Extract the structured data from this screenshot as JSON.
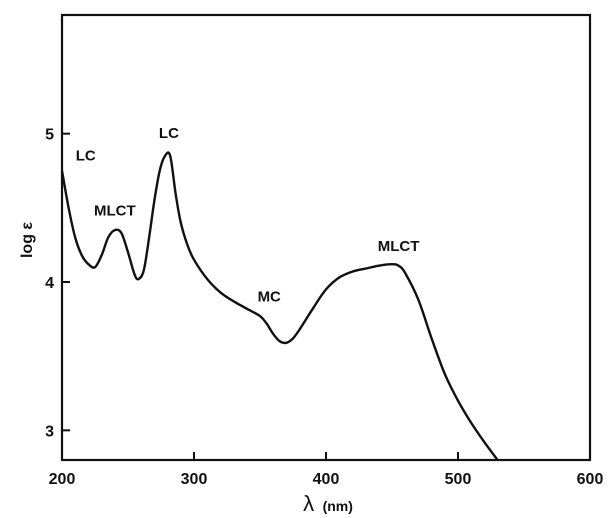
{
  "chart_data": {
    "type": "line",
    "xlabel_symbol": "λ",
    "xlabel_unit": "(nm)",
    "ylabel": "log ε",
    "xlim": [
      200,
      600
    ],
    "ylim": [
      2.8,
      5.8
    ],
    "xticks": [
      200,
      300,
      400,
      500,
      600
    ],
    "yticks": [
      3,
      4,
      5
    ],
    "grid": false,
    "series": [
      {
        "x": [
          200,
          205,
          210,
          215,
          220,
          225,
          230,
          235,
          240,
          245,
          250,
          255,
          258,
          262,
          266,
          270,
          274,
          278,
          282,
          286,
          290,
          295,
          300,
          310,
          320,
          330,
          340,
          350,
          355,
          360,
          365,
          370,
          375,
          380,
          390,
          400,
          410,
          420,
          430,
          440,
          450,
          455,
          460,
          470,
          480,
          490,
          500,
          510,
          520,
          530
        ],
        "y": [
          4.75,
          4.5,
          4.3,
          4.18,
          4.12,
          4.1,
          4.18,
          4.3,
          4.35,
          4.33,
          4.2,
          4.05,
          4.02,
          4.08,
          4.3,
          4.55,
          4.75,
          4.85,
          4.85,
          4.6,
          4.4,
          4.25,
          4.15,
          4.02,
          3.93,
          3.87,
          3.82,
          3.77,
          3.72,
          3.65,
          3.6,
          3.59,
          3.62,
          3.68,
          3.82,
          3.95,
          4.03,
          4.07,
          4.09,
          4.11,
          4.12,
          4.11,
          4.06,
          3.88,
          3.62,
          3.38,
          3.2,
          3.05,
          2.92,
          2.8
        ]
      }
    ],
    "annotations": [
      {
        "text": "LC",
        "x": 218,
        "y": 4.82
      },
      {
        "text": "MLCT",
        "x": 240,
        "y": 4.45
      },
      {
        "text": "LC",
        "x": 281,
        "y": 4.97
      },
      {
        "text": "MC",
        "x": 357,
        "y": 3.87
      },
      {
        "text": "MLCT",
        "x": 455,
        "y": 4.21
      }
    ]
  }
}
